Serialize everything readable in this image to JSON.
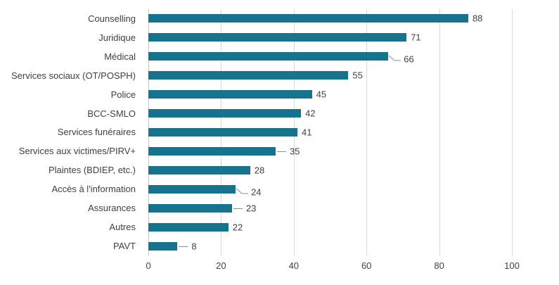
{
  "chart_data": {
    "type": "bar",
    "orientation": "horizontal",
    "title": "",
    "xlabel": "",
    "ylabel": "",
    "xlim": [
      0,
      100
    ],
    "x_ticks": [
      0,
      20,
      40,
      60,
      80,
      100
    ],
    "grid": true,
    "legend": false,
    "bar_color": "#16738d",
    "gridline_color": "#d9d9d9",
    "zero_line_color": "#c6c6c6",
    "leader_line_color": "#8c8c8c",
    "text_color": "#404040",
    "categories": [
      "Counselling",
      "Juridique",
      "Médical",
      "Services sociaux (OT/POSPH)",
      "Police",
      "BCC-SMLO",
      "Services funéraires",
      "Services aux victimes/PIRV+",
      "Plaintes (BDIEP, etc.)",
      "Accès à l'information",
      "Assurances",
      "Autres",
      "PAVT"
    ],
    "values": [
      88,
      71,
      66,
      55,
      45,
      42,
      41,
      35,
      28,
      24,
      23,
      22,
      8
    ],
    "data_labels": [
      "88",
      "71",
      "66",
      "55",
      "45",
      "42",
      "41",
      "35",
      "28",
      "24",
      "23",
      "22",
      "8"
    ],
    "leader_lines": [
      null,
      null,
      "bent",
      null,
      null,
      null,
      null,
      "straight",
      null,
      "bent",
      "straight",
      null,
      "straight"
    ]
  }
}
